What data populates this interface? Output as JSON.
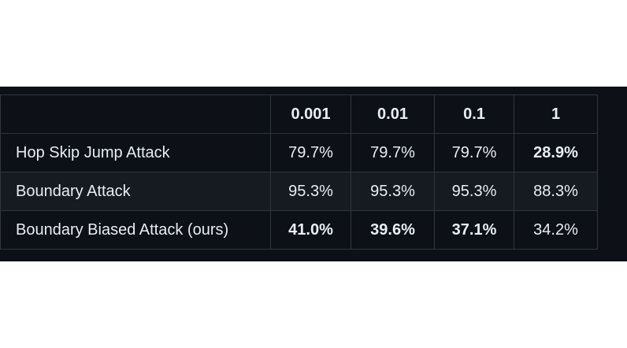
{
  "table": {
    "columns": [
      "",
      "0.001",
      "0.01",
      "0.1",
      "1"
    ],
    "rows": [
      {
        "label": "Hop Skip Jump Attack",
        "values": [
          "79.7%",
          "79.7%",
          "79.7%",
          "28.9%"
        ],
        "bold": [
          false,
          false,
          false,
          true
        ]
      },
      {
        "label": "Boundary Attack",
        "values": [
          "95.3%",
          "95.3%",
          "95.3%",
          "88.3%"
        ],
        "bold": [
          false,
          false,
          false,
          false
        ]
      },
      {
        "label": "Boundary Biased Attack (ours)",
        "values": [
          "41.0%",
          "39.6%",
          "37.1%",
          "34.2%"
        ],
        "bold": [
          true,
          true,
          true,
          false
        ]
      }
    ]
  },
  "colors": {
    "background": "#0d1117",
    "alt_row": "#161b22",
    "border": "#30363d",
    "text": "#e6edf3"
  }
}
